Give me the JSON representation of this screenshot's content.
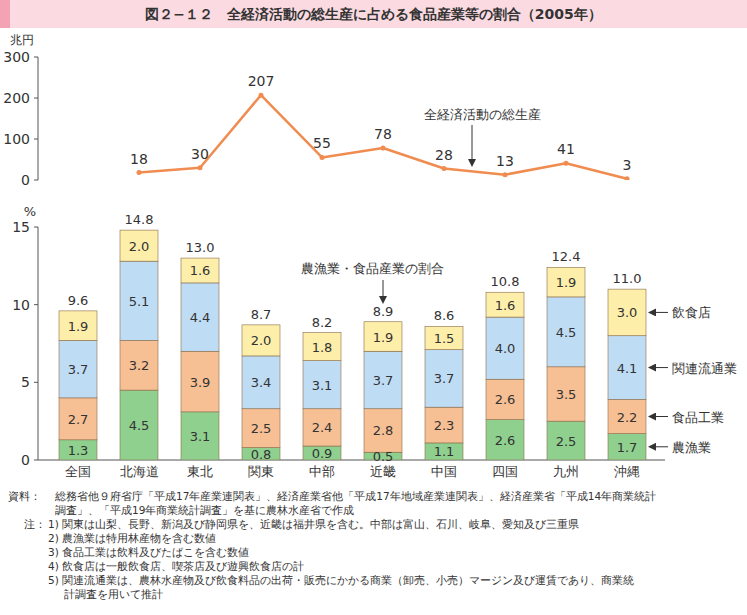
{
  "chart_data": [
    {
      "type": "line",
      "title": "図２−１２　全経済活動の総生産に占める食品産業等の割合（2005年）",
      "y_label": "兆円",
      "annotations": [
        "全経済活動の総生産"
      ],
      "categories": [
        "全国",
        "北海道",
        "東北",
        "関東",
        "中部",
        "近畿",
        "中国",
        "四国",
        "九州",
        "沖縄"
      ],
      "values": [
        null,
        18,
        30,
        207,
        55,
        78,
        28,
        13,
        41,
        3
      ],
      "color": "#f08c50",
      "ylim": [
        0,
        300
      ],
      "yticks": [
        0,
        100,
        200,
        300
      ],
      "data_labels": true,
      "tick_labels": "y"
    },
    {
      "type": "bar",
      "stacked": true,
      "y_label": "%",
      "annotations": [
        "農漁業・食品産業の割合"
      ],
      "categories": [
        "全国",
        "北海道",
        "東北",
        "関東",
        "中部",
        "近畿",
        "中国",
        "四国",
        "九州",
        "沖縄"
      ],
      "series": [
        {
          "name": "農漁業",
          "color": "#8fd08f",
          "values": [
            1.3,
            4.5,
            3.1,
            0.8,
            0.9,
            0.5,
            1.1,
            2.6,
            2.5,
            1.7
          ],
          "value_labels": [
            "1.3",
            "4.5",
            "3.1",
            "0.8",
            "0.9",
            "0.5",
            "1.1",
            "2.6",
            "2.5",
            "1.7"
          ]
        },
        {
          "name": "食品工業",
          "color": "#f7bf94",
          "values": [
            2.7,
            3.2,
            3.9,
            2.5,
            2.4,
            2.8,
            2.3,
            2.6,
            3.5,
            2.2
          ],
          "value_labels": [
            "2.7",
            "3.2",
            "3.9",
            "2.5",
            "2.4",
            "2.8",
            "2.3",
            "2.6",
            "3.5",
            "2.2"
          ]
        },
        {
          "name": "関連流通業",
          "color": "#bfdcf5",
          "values": [
            3.7,
            5.1,
            4.4,
            3.4,
            3.1,
            3.7,
            3.7,
            4.0,
            4.5,
            4.1
          ],
          "value_labels": [
            "3.7",
            "5.1",
            "4.4",
            "3.4",
            "3.1",
            "3.7",
            "3.7",
            "4.0",
            "4.5",
            "4.1"
          ]
        },
        {
          "name": "飲食店",
          "color": "#fdeeaa",
          "values": [
            1.9,
            2.0,
            1.6,
            2.0,
            1.8,
            1.9,
            1.5,
            1.6,
            1.9,
            3.0
          ],
          "value_labels": [
            "1.9",
            "2.0",
            "1.6",
            "2.0",
            "1.8",
            "1.9",
            "1.5",
            "1.6",
            "1.9",
            "3.0"
          ]
        }
      ],
      "totals": [
        9.6,
        14.8,
        13.0,
        8.7,
        8.2,
        8.9,
        8.6,
        10.8,
        12.4,
        11.0
      ],
      "total_labels": [
        "9.6",
        "14.8",
        "13.0",
        "8.7",
        "8.2",
        "8.9",
        "8.6",
        "10.8",
        "12.4",
        "11.0"
      ],
      "ylim": [
        0,
        15
      ],
      "yticks": [
        0,
        5,
        10,
        15
      ],
      "legend": "right",
      "data_labels": true,
      "source_label": "資料：",
      "source": [
        "総務省他９府省庁「平成17年産業連関表」、経済産業省他「平成17年地域産業連関表」、経済産業省「平成14年商業統計",
        "調査」、「平成19年商業統計調査」を基に農林水産省で作成"
      ],
      "notes_label": "注：",
      "notes": [
        "1) 関東は山梨、長野、新潟及び静岡県を、近畿は福井県を含む。中部は富山、石川、岐阜、愛知及び三重県",
        "2) 農漁業は特用林産物を含む数値",
        "3) 食品工業は飲料及びたばこを含む数値",
        "4) 飲食店は一般飲食店、喫茶店及び遊興飲食店の計",
        "5) 関連流通業は、農林水産物及び飲食料品の出荷・販売にかかる商業（卸売、小売）マージン及び運賃であり、商業統",
        "計調査を用いて推計"
      ]
    }
  ]
}
